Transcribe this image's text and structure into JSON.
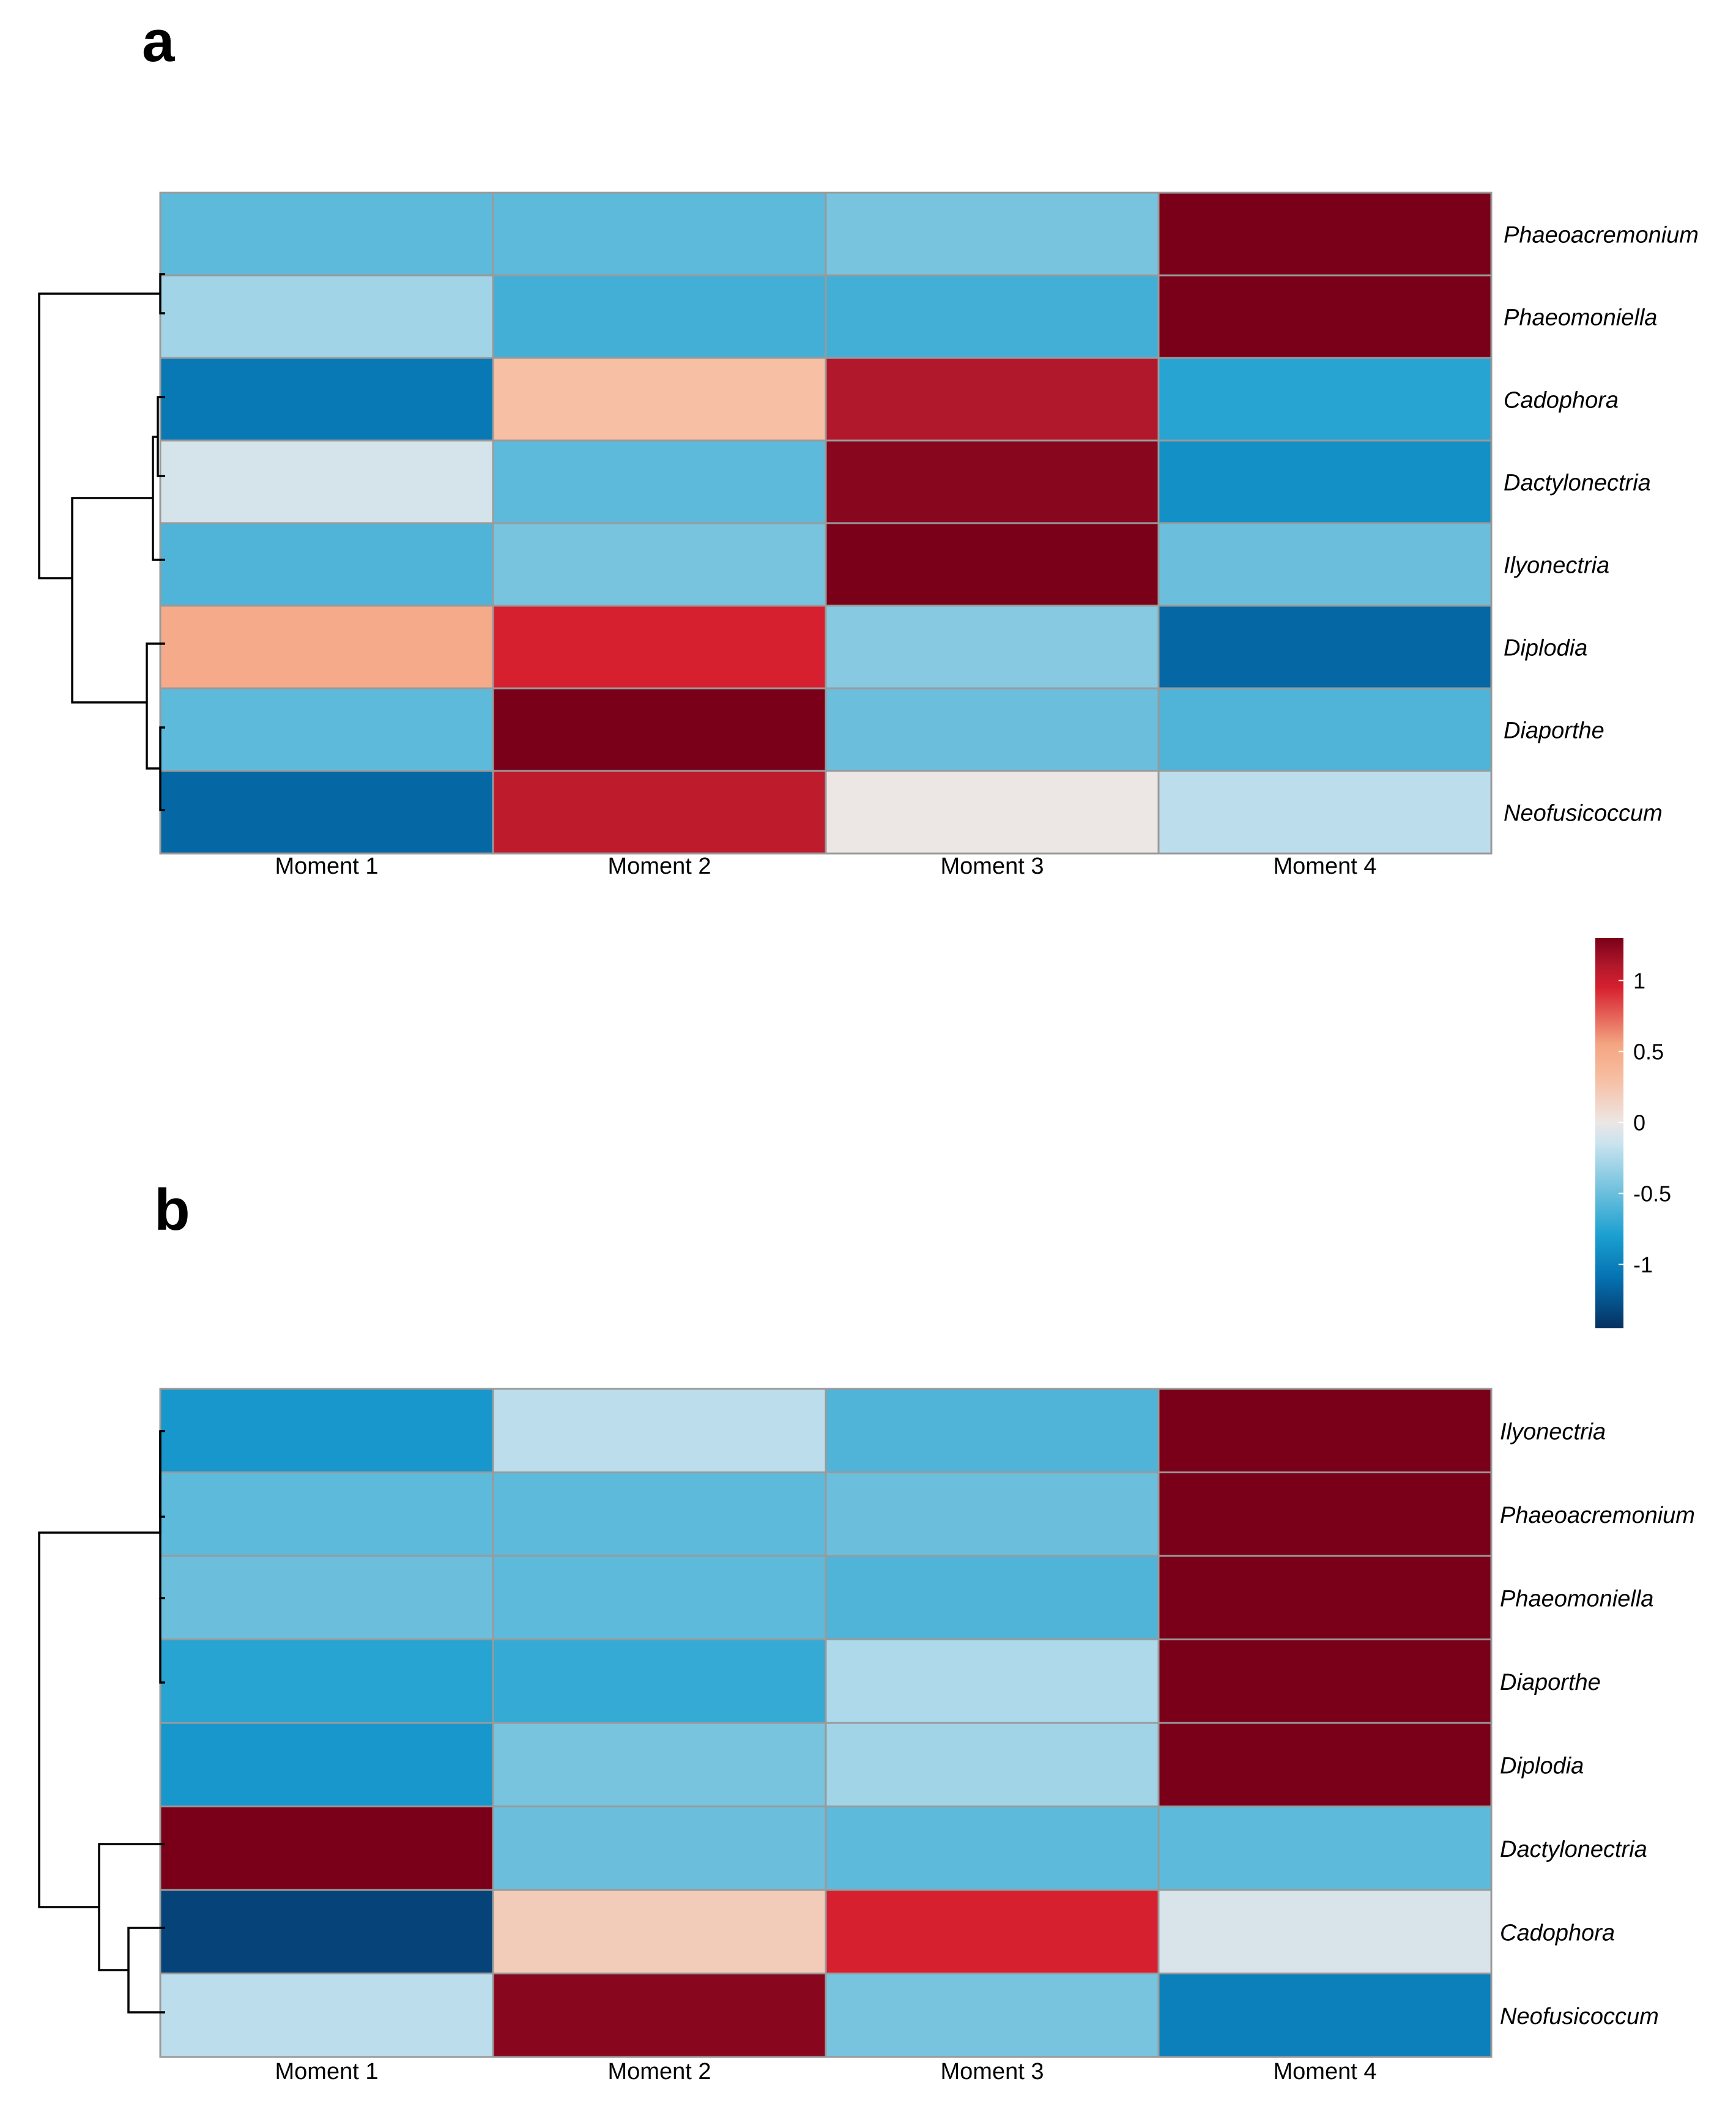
{
  "colorscale": {
    "stops": [
      {
        "v": -1.45,
        "c": "#053061"
      },
      {
        "v": -1.1,
        "c": "#0571b0"
      },
      {
        "v": -0.8,
        "c": "#1a9fd0"
      },
      {
        "v": -0.5,
        "c": "#6bbfdc"
      },
      {
        "v": -0.15,
        "c": "#c9e3ef"
      },
      {
        "v": 0.0,
        "c": "#ece6e4"
      },
      {
        "v": 0.3,
        "c": "#f7bfa3"
      },
      {
        "v": 0.55,
        "c": "#f4a582"
      },
      {
        "v": 0.95,
        "c": "#d6202f"
      },
      {
        "v": 1.1,
        "c": "#b2182b"
      },
      {
        "v": 1.3,
        "c": "#7a0019"
      }
    ]
  },
  "legend": {
    "ticks": [
      "1",
      "0.5",
      "0",
      "-0.5",
      "-1"
    ],
    "tick_values": [
      1,
      0.5,
      0,
      -0.5,
      -1
    ],
    "min": -1.45,
    "max": 1.3
  },
  "chart_data": [
    {
      "type": "heatmap",
      "panel": "a",
      "columns": [
        "Moment 1",
        "Moment 2",
        "Moment 3",
        "Moment 4"
      ],
      "rows": [
        "Phaeoacremonium",
        "Phaeomoniella",
        "Cadophora",
        "Dactylonectria",
        "Ilyonectria",
        "Diplodia",
        "Diaporthe",
        "Neofusicoccum"
      ],
      "values": [
        [
          -0.55,
          -0.55,
          -0.45,
          1.3
        ],
        [
          -0.3,
          -0.65,
          -0.65,
          1.3
        ],
        [
          -1.05,
          0.3,
          1.1,
          -0.75
        ],
        [
          -0.1,
          -0.55,
          1.25,
          -0.9
        ],
        [
          -0.6,
          -0.45,
          1.3,
          -0.5
        ],
        [
          0.5,
          0.95,
          -0.4,
          -1.15
        ],
        [
          -0.55,
          1.3,
          -0.5,
          -0.6
        ],
        [
          -1.15,
          1.05,
          0.0,
          -0.2
        ]
      ]
    },
    {
      "type": "heatmap",
      "panel": "b",
      "columns": [
        "Moment 1",
        "Moment 2",
        "Moment 3",
        "Moment 4"
      ],
      "rows": [
        "Ilyonectria",
        "Phaeoacremonium",
        "Phaeomoniella",
        "Diaporthe",
        "Diplodia",
        "Dactylonectria",
        "Cadophora",
        "Neofusicoccum"
      ],
      "values": [
        [
          -0.85,
          -0.2,
          -0.6,
          1.3
        ],
        [
          -0.55,
          -0.55,
          -0.5,
          1.3
        ],
        [
          -0.5,
          -0.55,
          -0.6,
          1.3
        ],
        [
          -0.75,
          -0.7,
          -0.25,
          1.3
        ],
        [
          -0.85,
          -0.45,
          -0.3,
          1.3
        ],
        [
          1.3,
          -0.5,
          -0.55,
          -0.55
        ],
        [
          -1.35,
          0.2,
          0.95,
          -0.08
        ],
        [
          -0.2,
          1.25,
          -0.45,
          -1.0
        ]
      ]
    }
  ]
}
